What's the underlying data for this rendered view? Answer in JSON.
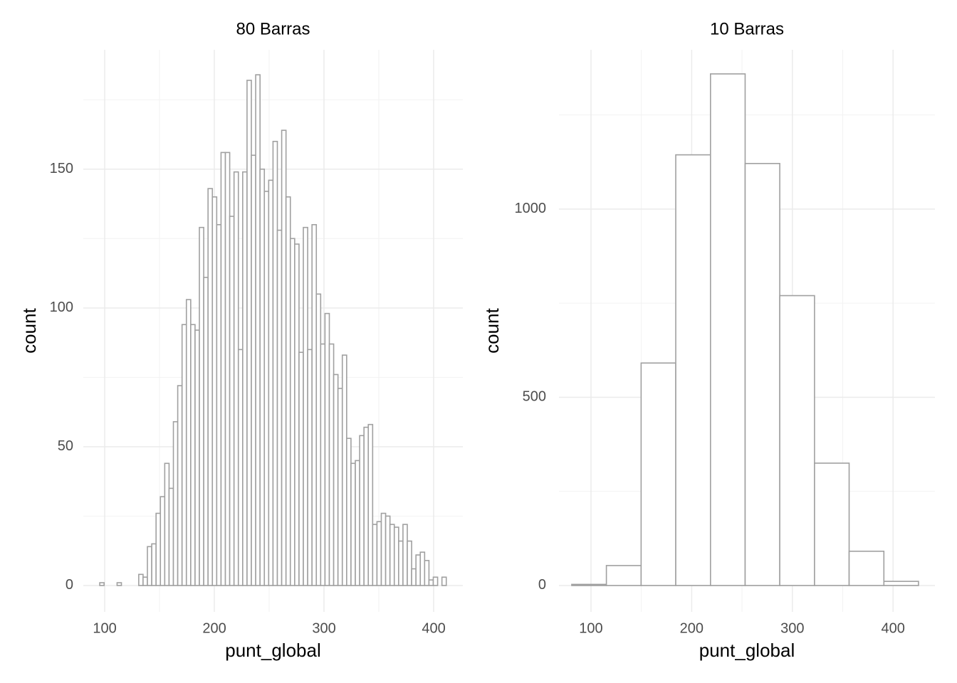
{
  "chart_data": [
    {
      "type": "histogram",
      "title": "80 Barras",
      "xlabel": "punt_global",
      "ylabel": "count",
      "bins": [
        95.5,
        99.45,
        103.4,
        107.35,
        111.3,
        115.25,
        119.2,
        123.15,
        127.1,
        131.05,
        135,
        138.95,
        142.9,
        146.85,
        150.8,
        154.75,
        158.7,
        162.65,
        166.6,
        170.55,
        174.5,
        178.45,
        182.4,
        186.35,
        190.3,
        194.25,
        198.2,
        202.15,
        206.1,
        210.05,
        214,
        217.95,
        221.9,
        225.85,
        229.8,
        233.75,
        237.7,
        241.65,
        245.6,
        249.55,
        253.5,
        257.45,
        261.4,
        265.35,
        269.3,
        273.25,
        277.2,
        281.15,
        285.1,
        289.05,
        293,
        296.95,
        300.9,
        304.85,
        308.8,
        312.75,
        316.7,
        320.65,
        324.6,
        328.55,
        332.5,
        336.45,
        340.4,
        344.35,
        348.3,
        352.25,
        356.2,
        360.15,
        364.1,
        368.05,
        372,
        375.95,
        379.9,
        383.85,
        387.8,
        391.75,
        395.7,
        399.65,
        403.6,
        407.55,
        411.5
      ],
      "counts": [
        1,
        0,
        0,
        0,
        1,
        0,
        0,
        0,
        0,
        4,
        3,
        14,
        15,
        26,
        32,
        44,
        35,
        59,
        72,
        94,
        103,
        94,
        92,
        129,
        111,
        143,
        140,
        130,
        156,
        156,
        133,
        149,
        85,
        149,
        182,
        155,
        184,
        150,
        142,
        146,
        160,
        128,
        164,
        140,
        125,
        123,
        84,
        129,
        85,
        130,
        105,
        87,
        98,
        87,
        76,
        71,
        83,
        53,
        44,
        45,
        54,
        57,
        58,
        22,
        23,
        26,
        25,
        22,
        21,
        16,
        22,
        16,
        6,
        11,
        12,
        9,
        2,
        3,
        0,
        3
      ],
      "color": "#a0a0a0",
      "fill": "#ffffff",
      "xlim": [
        80.5,
        426.6
      ],
      "xticks": [
        100,
        200,
        300,
        400
      ],
      "xticks_minor": [
        150,
        250,
        350
      ],
      "ylim": [
        -9.5,
        193
      ],
      "yticks": [
        0,
        50,
        100,
        150
      ],
      "yticks_minor": [
        25,
        75,
        125,
        175
      ],
      "grid": true
    },
    {
      "type": "histogram",
      "title": "10 Barras",
      "xlabel": "punt_global",
      "ylabel": "count",
      "bins": [
        80.9,
        115.3,
        149.8,
        184.2,
        218.7,
        253.1,
        287.5,
        322,
        356.4,
        390.9,
        425.3
      ],
      "counts": [
        3,
        53,
        591,
        1144,
        1359,
        1121,
        770,
        325,
        91,
        11
      ],
      "color": "#a0a0a0",
      "fill": "#ffffff",
      "xlim": [
        68.2,
        441.6
      ],
      "xticks": [
        100,
        200,
        300,
        400
      ],
      "xticks_minor": [
        150,
        250,
        350
      ],
      "ylim": [
        -70,
        1423
      ],
      "yticks": [
        0,
        500,
        1000
      ],
      "yticks_minor": [
        250,
        750,
        1250
      ],
      "grid": true
    }
  ]
}
